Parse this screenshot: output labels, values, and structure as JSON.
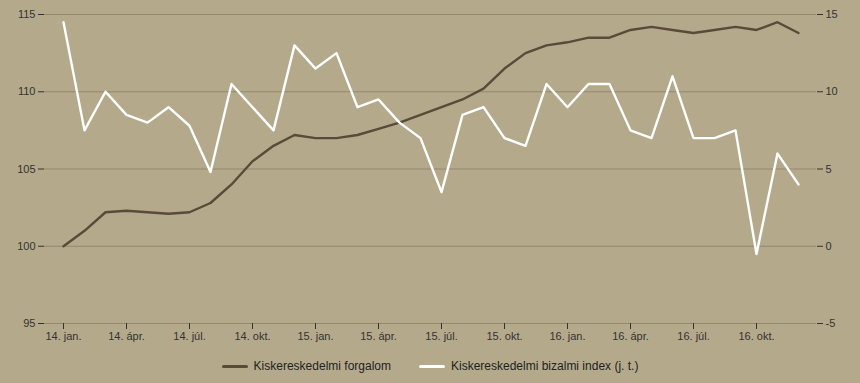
{
  "chart_data": {
    "type": "line",
    "categories": [
      "14. jan.",
      null,
      null,
      "14. ápr.",
      null,
      null,
      "14. júl.",
      null,
      null,
      "14. okt.",
      null,
      null,
      "15. jan.",
      null,
      null,
      "15. ápr.",
      null,
      null,
      "15. júl.",
      null,
      null,
      "15. okt.",
      null,
      null,
      "16. jan.",
      null,
      null,
      "16. ápr.",
      null,
      null,
      "16. júl.",
      null,
      null,
      "16. okt.",
      null,
      null
    ],
    "series": [
      {
        "name": "Kiskereskedelmi forgalom",
        "color": "#5a4a3a",
        "values": [
          100.0,
          101.0,
          102.2,
          102.3,
          102.2,
          102.1,
          102.2,
          102.8,
          104.0,
          105.5,
          106.5,
          107.2,
          107.0,
          107.0,
          107.2,
          107.6,
          108.0,
          108.5,
          109.0,
          109.5,
          110.2,
          111.5,
          112.5,
          113.0,
          113.2,
          113.5,
          113.5,
          114.0,
          114.2,
          114.0,
          113.8,
          114.0,
          114.2,
          114.0,
          114.5,
          113.8
        ]
      },
      {
        "name": "Kiskereskedelmi bizalmi index (j. t.)",
        "color": "#ffffff",
        "axis": "y2",
        "values": [
          14.5,
          7.5,
          10.0,
          8.5,
          8.0,
          9.0,
          7.8,
          4.8,
          10.5,
          9.0,
          7.5,
          13.0,
          11.5,
          12.5,
          9.0,
          9.5,
          8.0,
          7.0,
          3.5,
          8.5,
          9.0,
          7.0,
          6.5,
          10.5,
          9.0,
          10.5,
          10.5,
          7.5,
          7.0,
          11.0,
          7.0,
          7.0,
          7.5,
          -0.5,
          6.0,
          4.0
        ]
      }
    ],
    "ylim": [
      95,
      115
    ],
    "yticks": [
      95,
      100,
      105,
      110,
      115
    ],
    "y2lim": [
      -5,
      15
    ],
    "y2ticks": [
      -5,
      0,
      5,
      10,
      15
    ],
    "grid": true,
    "legend": "bottom"
  }
}
